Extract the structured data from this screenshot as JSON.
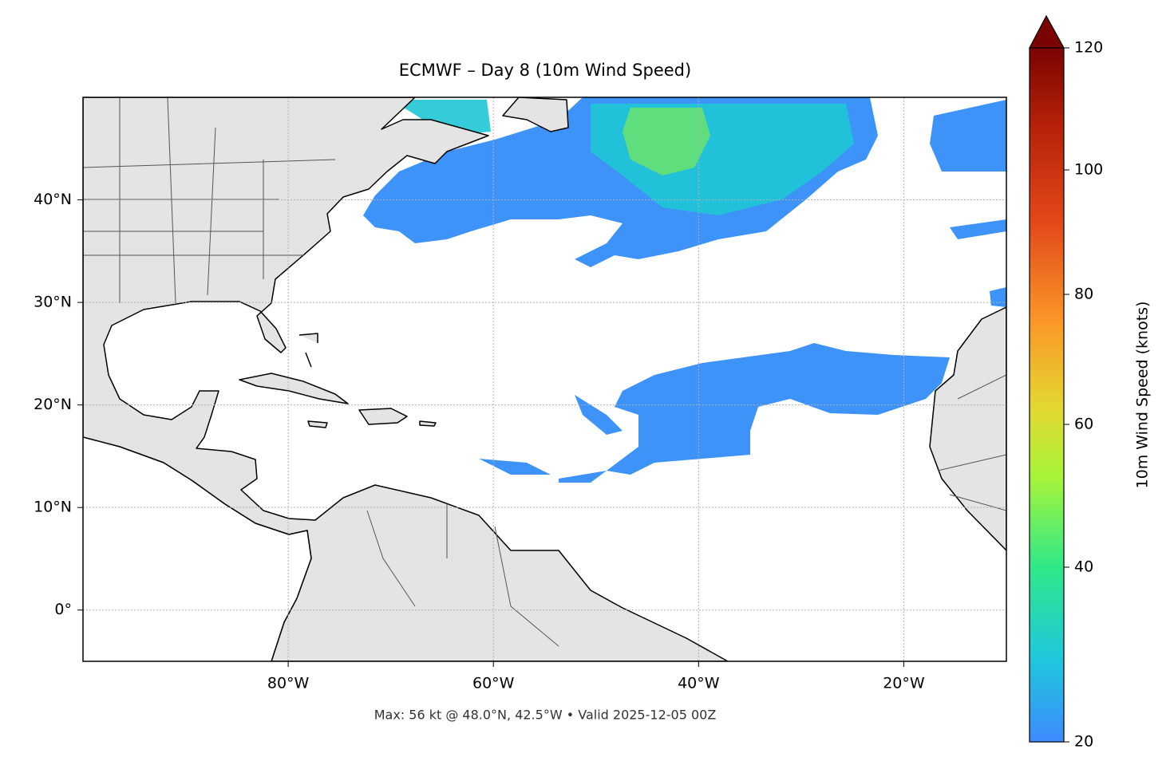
{
  "chart_data": {
    "type": "map",
    "title": "ECMWF – Day 8 (10m Wind Speed)",
    "xlim": [
      -100,
      -10
    ],
    "ylim": [
      -5,
      50
    ],
    "xticks": [
      {
        "value": -80,
        "label": "80°W"
      },
      {
        "value": -60,
        "label": "60°W"
      },
      {
        "value": -40,
        "label": "40°W"
      },
      {
        "value": -20,
        "label": "20°W"
      }
    ],
    "yticks": [
      {
        "value": 0,
        "label": "0°"
      },
      {
        "value": 10,
        "label": "10°N"
      },
      {
        "value": 20,
        "label": "20°N"
      },
      {
        "value": 30,
        "label": "30°N"
      },
      {
        "value": 40,
        "label": "40°N"
      }
    ],
    "grid": true,
    "colorbar": {
      "label": "10m Wind Speed (knots)",
      "lim": [
        20,
        120
      ],
      "ticks": [
        20,
        40,
        60,
        80,
        100,
        120
      ],
      "extend": "max"
    },
    "footnote": "Max: 56 kt @ 48.0°N, 42.5°W • Valid 2025-12-05 00Z"
  }
}
